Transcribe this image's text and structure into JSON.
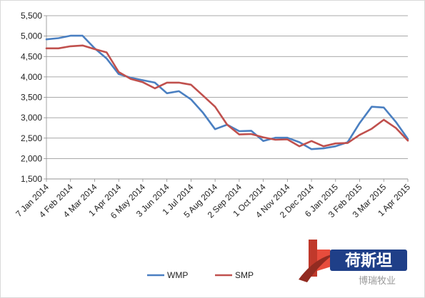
{
  "chart_data": {
    "type": "line",
    "title": "",
    "xlabel": "",
    "ylabel": "",
    "ylim": [
      1500,
      5500
    ],
    "yticks": [
      1500,
      2000,
      2500,
      3000,
      3500,
      4000,
      4500,
      5000,
      5500
    ],
    "ytick_labels": [
      "1,500",
      "2,000",
      "2,500",
      "3,000",
      "3,500",
      "4,000",
      "4,500",
      "5,000",
      "5,500"
    ],
    "x_tick_labels": [
      "7 Jan 2014",
      "4 Feb 2014",
      "4 Mar 2014",
      "1 Apr 2014",
      "6 May 2014",
      "3 Jun 2014",
      "1 Jul 2014",
      "5 Aug 2014",
      "2 Sep 2014",
      "1 Oct 2014",
      "4 Nov 2014",
      "2 Dec 2014",
      "6 Jan 2015",
      "3 Feb 2015",
      "3 Mar 2015",
      "1 Apr 2015"
    ],
    "x": [
      "7 Jan 2014",
      "21 Jan 2014",
      "4 Feb 2014",
      "18 Feb 2014",
      "4 Mar 2014",
      "18 Mar 2014",
      "1 Apr 2014",
      "15 Apr 2014",
      "6 May 2014",
      "20 May 2014",
      "3 Jun 2014",
      "17 Jun 2014",
      "1 Jul 2014",
      "15 Jul 2014",
      "5 Aug 2014",
      "19 Aug 2014",
      "2 Sep 2014",
      "16 Sep 2014",
      "1 Oct 2014",
      "15 Oct 2014",
      "4 Nov 2014",
      "18 Nov 2014",
      "2 Dec 2014",
      "16 Dec 2014",
      "6 Jan 2015",
      "20 Jan 2015",
      "3 Feb 2015",
      "17 Feb 2015",
      "3 Mar 2015",
      "17 Mar 2015",
      "1 Apr 2015"
    ],
    "series": [
      {
        "name": "WMP",
        "color": "#4a7fc1",
        "values": [
          4920,
          4950,
          5010,
          5010,
          4700,
          4450,
          4070,
          3980,
          3920,
          3860,
          3600,
          3650,
          3450,
          3120,
          2720,
          2830,
          2670,
          2680,
          2430,
          2510,
          2510,
          2400,
          2230,
          2250,
          2300,
          2400,
          2870,
          3270,
          3250,
          2900,
          2480
        ]
      },
      {
        "name": "SMP",
        "color": "#c0504d",
        "values": [
          4700,
          4700,
          4750,
          4770,
          4680,
          4600,
          4120,
          3950,
          3870,
          3720,
          3860,
          3860,
          3810,
          3540,
          3270,
          2830,
          2590,
          2600,
          2520,
          2460,
          2470,
          2300,
          2430,
          2300,
          2370,
          2380,
          2580,
          2730,
          2950,
          2750,
          2440
        ]
      }
    ],
    "grid": true,
    "legend": "bottom",
    "watermark": {
      "text": "荷斯坦",
      "subtext": "博瑞牧业"
    }
  }
}
